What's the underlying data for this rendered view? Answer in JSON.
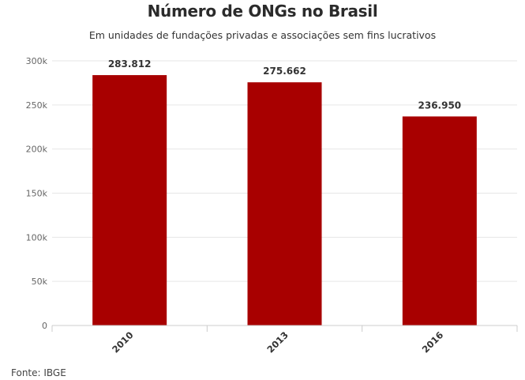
{
  "chart_data": {
    "type": "bar",
    "title": "Número de ONGs no Brasil",
    "subtitle": "Em unidades de fundações privadas e associações sem fins lucrativos",
    "categories": [
      "2010",
      "2013",
      "2016"
    ],
    "values": [
      283812,
      275662,
      236950
    ],
    "data_labels": [
      "283.812",
      "275.662",
      "236.950"
    ],
    "ylim": [
      0,
      300000
    ],
    "yticks": [
      0,
      50000,
      100000,
      150000,
      200000,
      250000,
      300000
    ],
    "ytick_labels": [
      "0",
      "50k",
      "100k",
      "150k",
      "200k",
      "250k",
      "300k"
    ],
    "xlabel": "",
    "ylabel": "",
    "grid": true,
    "bar_color": "#a80000",
    "source": "Fonte: IBGE"
  }
}
